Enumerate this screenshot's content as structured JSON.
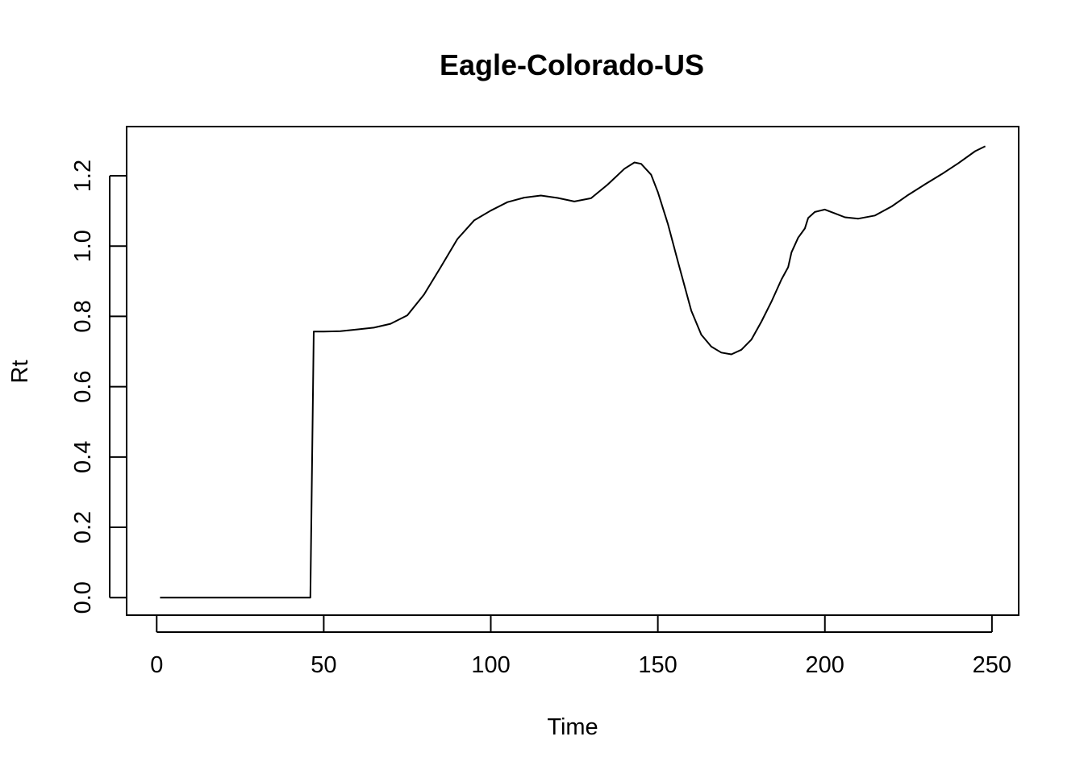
{
  "chart_data": {
    "type": "line",
    "title": "Eagle-Colorado-US",
    "xlabel": "Time",
    "ylabel": "Rt",
    "xlim": [
      -9,
      258
    ],
    "ylim": [
      -0.05,
      1.34
    ],
    "x_ticks": [
      0,
      50,
      100,
      150,
      200,
      250
    ],
    "y_ticks": [
      0.0,
      0.2,
      0.4,
      0.6,
      0.8,
      1.0,
      1.2
    ],
    "x_tick_labels": [
      "0",
      "50",
      "100",
      "150",
      "200",
      "250"
    ],
    "y_tick_labels": [
      "0.0",
      "0.2",
      "0.4",
      "0.6",
      "0.8",
      "1.0",
      "1.2"
    ],
    "grid": false,
    "legend": "none",
    "series": [
      {
        "color": "#000000",
        "x": [
          1,
          10,
          20,
          30,
          40,
          46,
          47,
          50,
          55,
          60,
          65,
          70,
          75,
          80,
          85,
          90,
          95,
          100,
          105,
          110,
          115,
          120,
          125,
          130,
          135,
          140,
          143,
          145,
          148,
          150,
          153,
          156,
          160,
          163,
          166,
          169,
          172,
          175,
          178,
          181,
          184,
          187,
          189,
          190,
          192,
          194,
          195,
          197,
          200,
          203,
          206,
          210,
          215,
          220,
          225,
          230,
          235,
          240,
          245,
          248
        ],
        "y": [
          0,
          0,
          0,
          0,
          0,
          0,
          0.757,
          0.757,
          0.758,
          0.763,
          0.768,
          0.779,
          0.803,
          0.862,
          0.94,
          1.02,
          1.073,
          1.101,
          1.125,
          1.138,
          1.144,
          1.137,
          1.127,
          1.136,
          1.175,
          1.22,
          1.238,
          1.234,
          1.203,
          1.154,
          1.063,
          0.956,
          0.816,
          0.748,
          0.714,
          0.697,
          0.692,
          0.705,
          0.734,
          0.785,
          0.842,
          0.905,
          0.94,
          0.982,
          1.024,
          1.05,
          1.08,
          1.097,
          1.104,
          1.093,
          1.082,
          1.078,
          1.087,
          1.113,
          1.146,
          1.176,
          1.205,
          1.236,
          1.27,
          1.284
        ]
      }
    ]
  }
}
